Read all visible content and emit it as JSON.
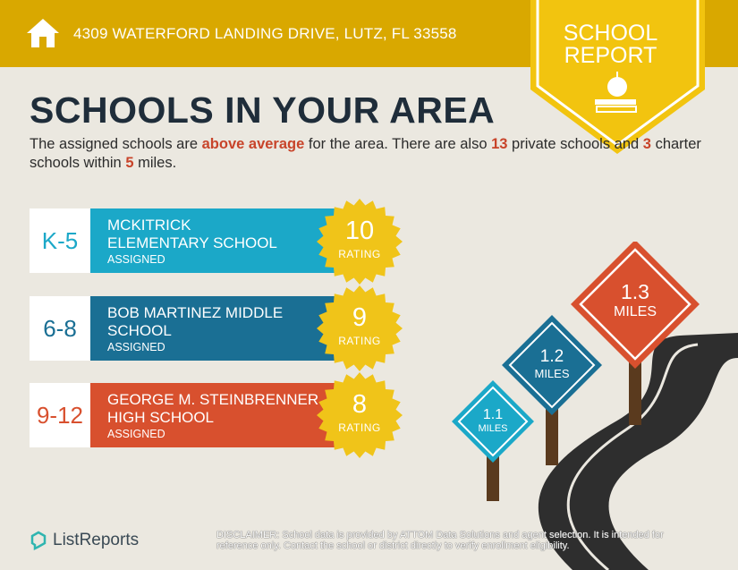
{
  "header": {
    "address": "4309 WATERFORD LANDING DRIVE, LUTZ, FL 33558",
    "ribbon_line1": "SCHOOL",
    "ribbon_line2": "REPORT"
  },
  "title": "SCHOOLS IN YOUR AREA",
  "intro": {
    "p1": "The assigned schools are ",
    "hl1": "above average",
    "p2": " for the area. There are also ",
    "hl2": "13",
    "p3": " private schools and ",
    "hl3": "3",
    "p4": " charter schools within ",
    "hl4": "5",
    "p5": " miles."
  },
  "schools": [
    {
      "grade": "K-5",
      "name_line1": "MCKITRICK",
      "name_line2": "ELEMENTARY SCHOOL",
      "status": "ASSIGNED",
      "rating": "10",
      "rating_label": "RATING",
      "color": "#1ba8c8"
    },
    {
      "grade": "6-8",
      "name_line1": "BOB MARTINEZ MIDDLE",
      "name_line2": "SCHOOL",
      "status": "ASSIGNED",
      "rating": "9",
      "rating_label": "RATING",
      "color": "#1a6f94"
    },
    {
      "grade": "9-12",
      "name_line1": "GEORGE M. STEINBRENNER",
      "name_line2": "HIGH SCHOOL",
      "status": "ASSIGNED",
      "rating": "8",
      "rating_label": "RATING",
      "color": "#d8502e"
    }
  ],
  "signs": [
    {
      "distance": "1.1",
      "unit": "MILES",
      "color": "#1ba8c8"
    },
    {
      "distance": "1.2",
      "unit": "MILES",
      "color": "#1a6f94"
    },
    {
      "distance": "1.3",
      "unit": "MILES",
      "color": "#d8502e"
    }
  ],
  "footer": {
    "logo": "ListReports",
    "disclaimer_label": "DISCLAIMER:",
    "disclaimer": " School data is provided by ATTOM Data Solutions and agent selection. It is intended for reference only. Contact the school or district directly to verify enrollment eligibility."
  },
  "colors": {
    "gold": "#d9a800",
    "badge": "#f0c419",
    "title": "#1f2d3a",
    "highlight": "#c8442a"
  }
}
